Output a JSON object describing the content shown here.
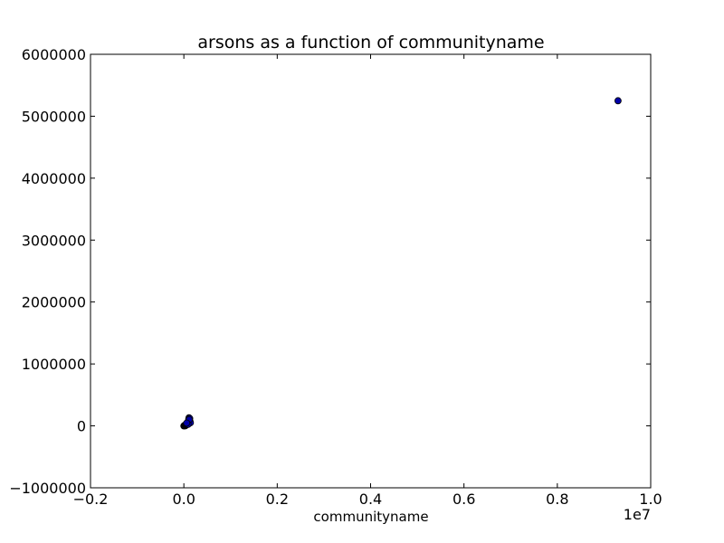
{
  "chart_data": {
    "type": "scatter",
    "title": "arsons as a function of communityname",
    "xlabel": "communityname",
    "ylabel": "",
    "x_offset_label": "1e7",
    "xlim": [
      -0.2,
      1.0
    ],
    "ylim": [
      -1000000,
      6000000
    ],
    "x_ticks": [
      -0.2,
      0.0,
      0.2,
      0.4,
      0.6,
      0.8,
      1.0
    ],
    "x_tick_labels": [
      "−0.2",
      "0.0",
      "0.2",
      "0.4",
      "0.6",
      "0.8",
      "1.0"
    ],
    "y_ticks": [
      -1000000,
      0,
      1000000,
      2000000,
      3000000,
      4000000,
      5000000,
      6000000
    ],
    "y_tick_labels": [
      "−1000000",
      "0",
      "1000000",
      "2000000",
      "3000000",
      "4000000",
      "5000000",
      "6000000"
    ],
    "grid": false,
    "marker_color": "#0000a8",
    "series": [
      {
        "name": "arsons",
        "points": [
          [
            0.0,
            0
          ],
          [
            0.001,
            5000
          ],
          [
            0.002,
            10000
          ],
          [
            0.003,
            2000
          ],
          [
            0.004,
            8000
          ],
          [
            0.005,
            15000
          ],
          [
            0.006,
            20000
          ],
          [
            0.007,
            30000
          ],
          [
            0.008,
            40000
          ],
          [
            0.009,
            60000
          ],
          [
            0.01,
            80000
          ],
          [
            0.0105,
            110000
          ],
          [
            0.011,
            130000
          ],
          [
            0.012,
            90000
          ],
          [
            0.013,
            70000
          ],
          [
            0.014,
            50000
          ],
          [
            0.0125,
            120000
          ],
          [
            0.0115,
            100000
          ],
          [
            0.009,
            25000
          ],
          [
            0.006,
            45000
          ],
          [
            0.93,
            5250000
          ]
        ]
      }
    ]
  }
}
